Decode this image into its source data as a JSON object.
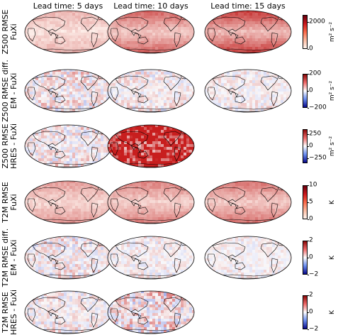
{
  "chart_data": {
    "type": "heatmap",
    "description_units": "global maps of RMSE and RMSE differences",
    "columns": [
      "Lead time: 5 days",
      "Lead time: 10 days",
      "Lead time: 15 days"
    ],
    "rows": [
      {
        "label_lines": [
          "Z500 RMSE",
          "FuXi"
        ],
        "colormap": "white-red",
        "vmin": 0,
        "vmax": 2500,
        "cbar_ticks": [
          "2000",
          "0"
        ],
        "cbar_tick_values": [
          2000,
          0
        ],
        "unit": "m² s⁻²",
        "panels": [
          {
            "lead_days": 5,
            "intensity": 0.25
          },
          {
            "lead_days": 10,
            "intensity": 0.55
          },
          {
            "lead_days": 15,
            "intensity": 0.7
          }
        ]
      },
      {
        "label_lines": [
          "Z500 RMSE diff.",
          "EM - FuXi"
        ],
        "colormap": "blue-white-red",
        "vmin": -200,
        "vmax": 200,
        "cbar_ticks": [
          "200",
          "0",
          "−200"
        ],
        "cbar_tick_values": [
          200,
          0,
          -200
        ],
        "unit": "m² s⁻²",
        "panels": [
          {
            "lead_days": 5,
            "intensity": 0.35
          },
          {
            "lead_days": 10,
            "intensity": 0.25
          },
          {
            "lead_days": 15,
            "intensity": 0.2
          }
        ]
      },
      {
        "label_lines": [
          "Z500 RMSE",
          "HRES - FuXi"
        ],
        "colormap": "blue-white-red",
        "vmin": -350,
        "vmax": 350,
        "cbar_ticks": [
          "250",
          "0",
          "−250"
        ],
        "cbar_tick_values": [
          250,
          0,
          -250
        ],
        "unit": "m² s⁻²",
        "panels": [
          {
            "lead_days": 5,
            "intensity": 0.3
          },
          {
            "lead_days": 10,
            "intensity": 0.95
          }
        ]
      },
      {
        "label_lines": [
          "T2M RMSE",
          "FuXi"
        ],
        "colormap": "white-red",
        "vmin": 0,
        "vmax": 10,
        "cbar_ticks": [
          "10",
          "5",
          "0"
        ],
        "cbar_tick_values": [
          10,
          5,
          0
        ],
        "unit": "K",
        "panels": [
          {
            "lead_days": 5,
            "intensity": 0.35
          },
          {
            "lead_days": 10,
            "intensity": 0.45
          },
          {
            "lead_days": 15,
            "intensity": 0.5
          }
        ]
      },
      {
        "label_lines": [
          "T2M RMSE diff.",
          "EM - FuXi"
        ],
        "colormap": "blue-white-red",
        "vmin": -2,
        "vmax": 2,
        "cbar_ticks": [
          "2",
          "0",
          "−2"
        ],
        "cbar_tick_values": [
          2,
          0,
          -2
        ],
        "unit": "K",
        "panels": [
          {
            "lead_days": 5,
            "intensity": 0.3
          },
          {
            "lead_days": 10,
            "intensity": 0.2
          },
          {
            "lead_days": 15,
            "intensity": 0.15
          }
        ]
      },
      {
        "label_lines": [
          "T2M RMSE",
          "HRES - FuXi"
        ],
        "colormap": "blue-white-red",
        "vmin": -2,
        "vmax": 2,
        "cbar_ticks": [
          "2",
          "0",
          "−2"
        ],
        "cbar_tick_values": [
          2,
          0,
          -2
        ],
        "unit": "K",
        "panels": [
          {
            "lead_days": 5,
            "intensity": 0.25
          },
          {
            "lead_days": 10,
            "intensity": 0.45
          }
        ]
      }
    ]
  }
}
